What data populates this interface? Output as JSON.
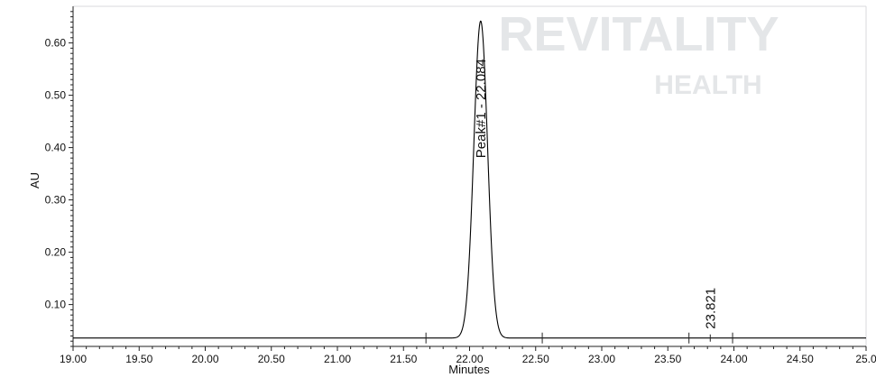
{
  "watermark": {
    "line1": "REVITALITY",
    "line2": "HEALTH",
    "color": "#e4e6e8"
  },
  "chart_data": {
    "type": "line",
    "title": "",
    "xlabel": "Minutes",
    "ylabel": "AU",
    "xlim": [
      19.0,
      25.0
    ],
    "ylim": [
      0.02,
      0.67
    ],
    "grid": false,
    "x_ticks": [
      "19.00",
      "19.50",
      "20.00",
      "20.50",
      "21.00",
      "21.50",
      "22.00",
      "22.50",
      "23.00",
      "23.50",
      "24.00",
      "24.50",
      "25.0"
    ],
    "y_ticks": [
      "0.10",
      "0.20",
      "0.30",
      "0.40",
      "0.50",
      "0.60"
    ],
    "series": [
      {
        "baseline": 0.036,
        "line_color": "#000000",
        "peaks": [
          {
            "label": "Peak#1 - 22.084",
            "rt": 22.084,
            "height": 0.642,
            "sigma": 0.052,
            "start": 21.67,
            "end": 22.55
          },
          {
            "label": "23.821",
            "rt": 23.821,
            "height": 0.0365,
            "sigma": 0.04,
            "start": 23.66,
            "end": 23.99
          }
        ]
      }
    ]
  }
}
